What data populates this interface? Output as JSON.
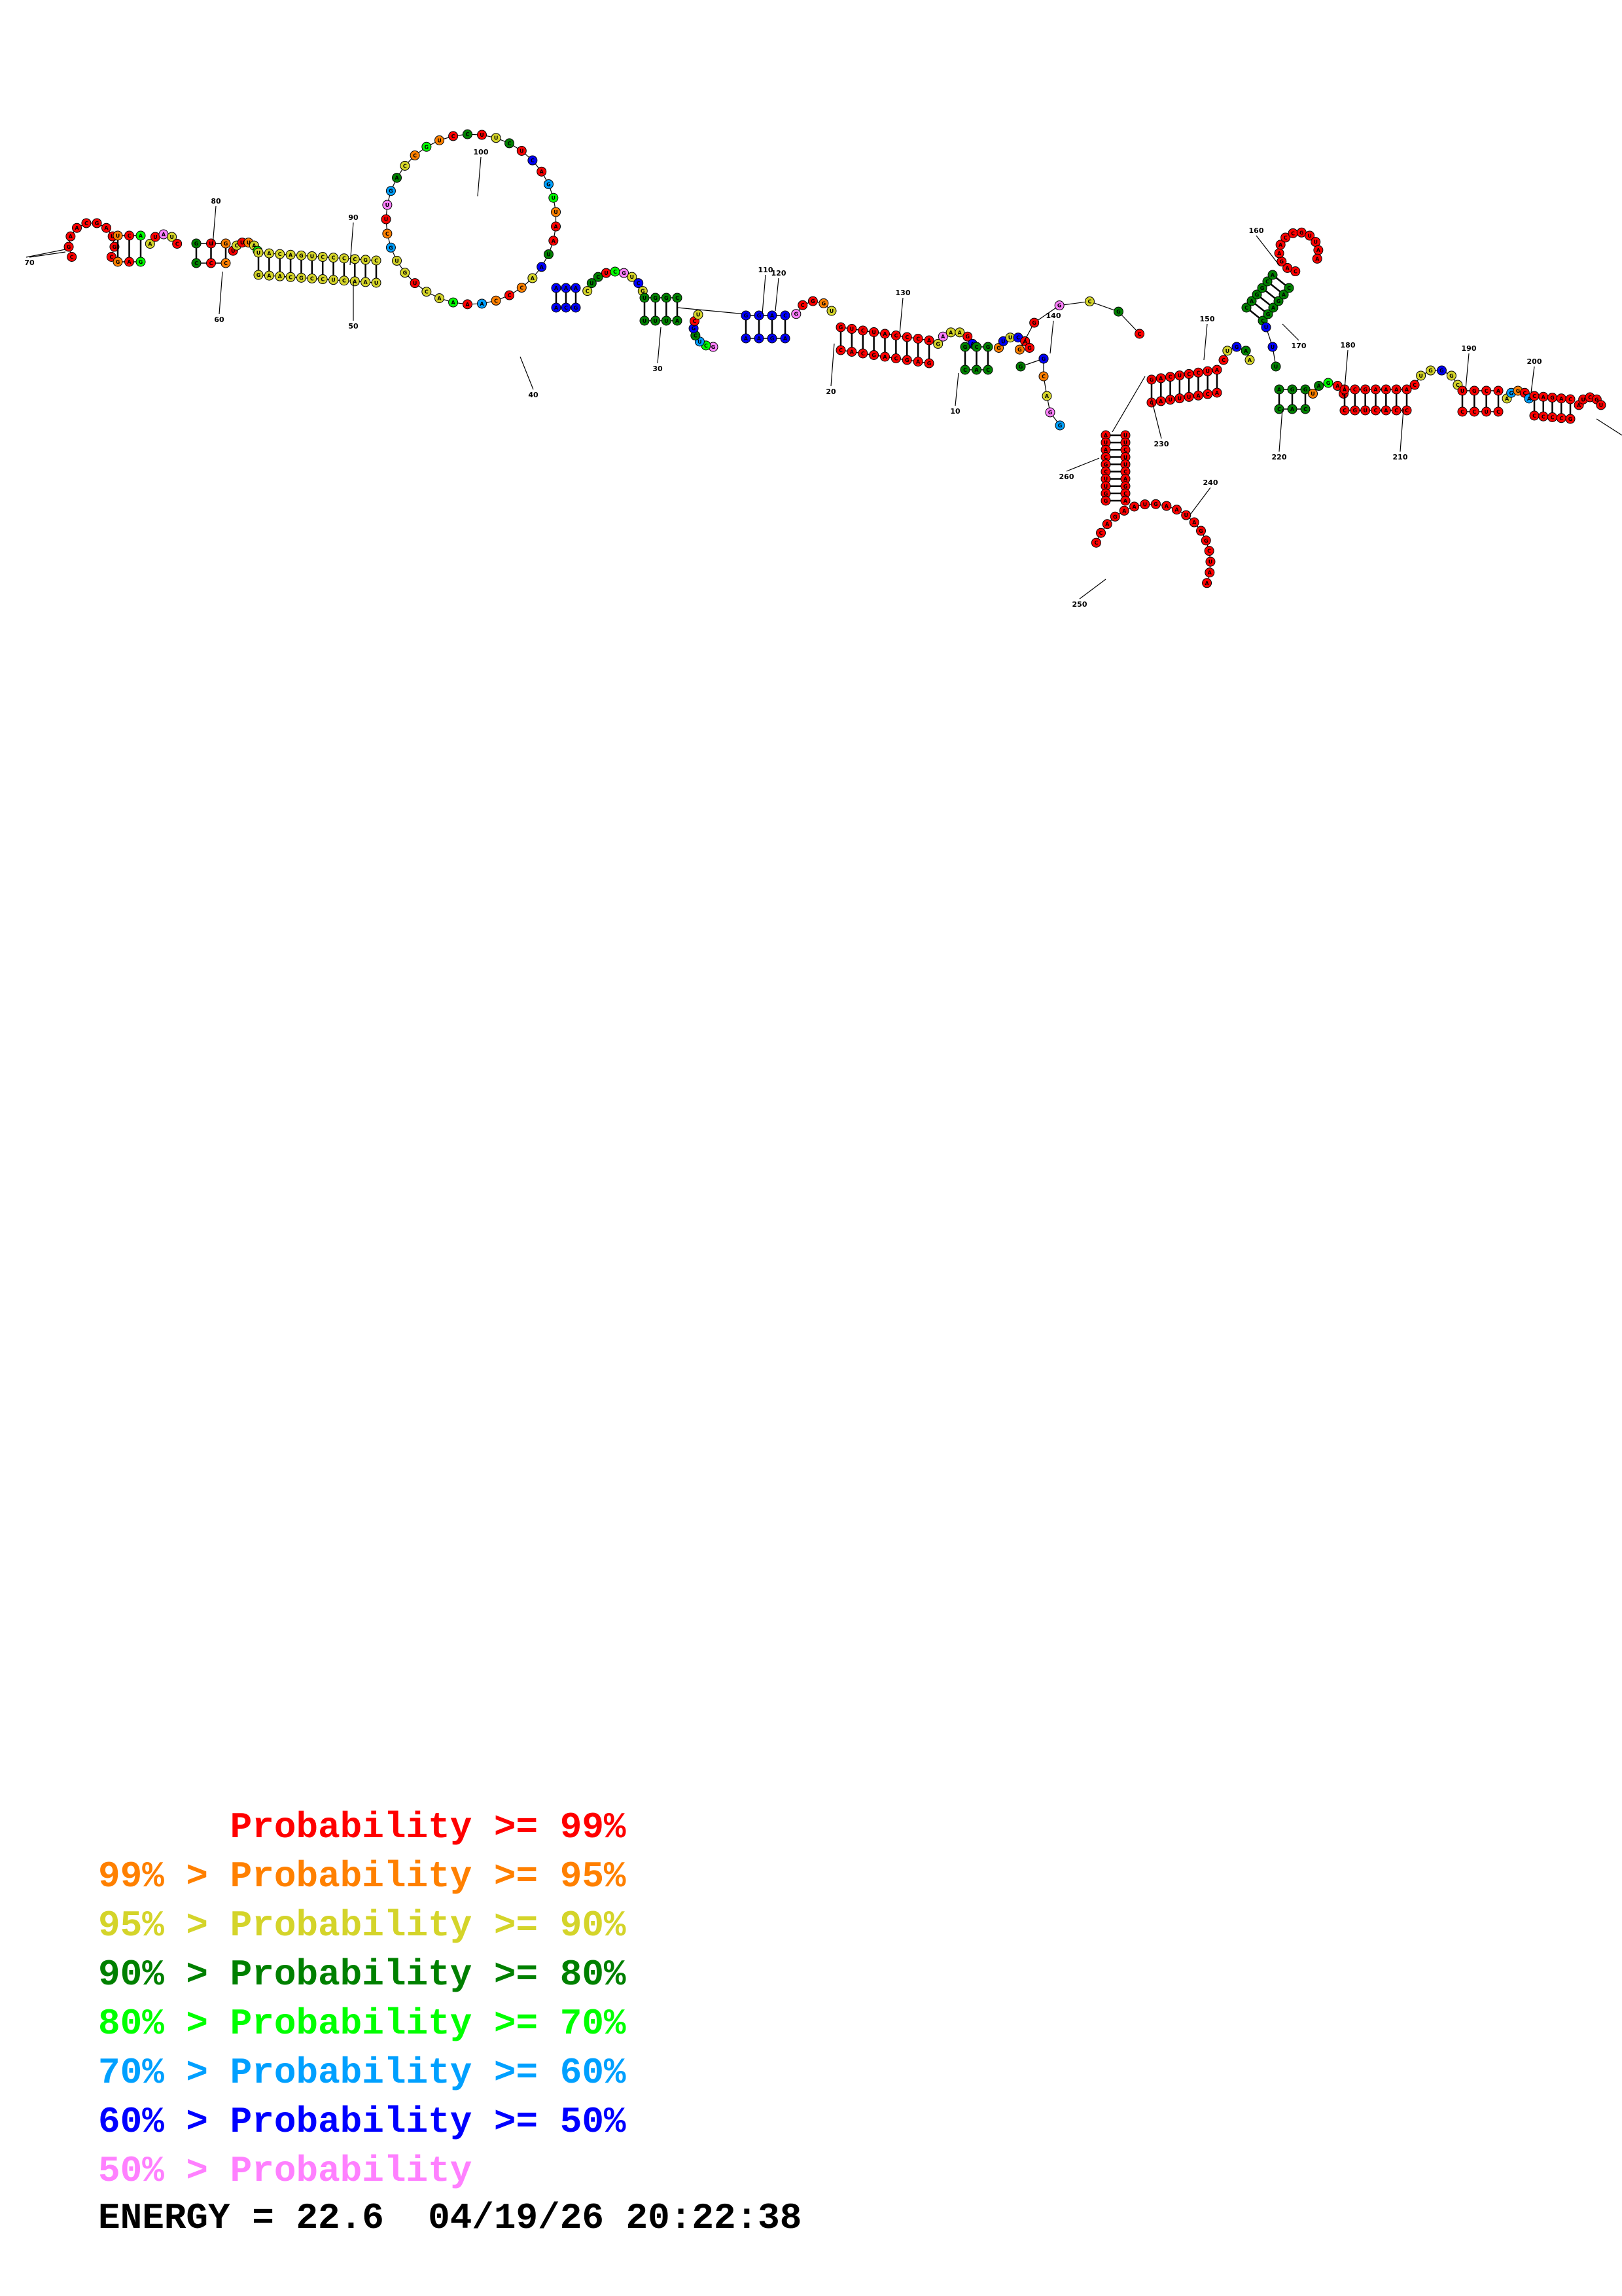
{
  "diagram": {
    "type": "rna-secondary-structure",
    "nucleotide_letters": [
      "A",
      "C",
      "G",
      "U"
    ],
    "index_labels": [
      "10",
      "20",
      "30",
      "40",
      "50",
      "60",
      "70",
      "80",
      "90",
      "100",
      "110",
      "120",
      "130",
      "140",
      "150",
      "160",
      "170",
      "180",
      "190",
      "200",
      "210",
      "220",
      "230",
      "240",
      "250",
      "260"
    ],
    "colors": {
      "p99": "#ff0000",
      "p95": "#ff8000",
      "p90": "#d4d42a",
      "p80": "#008000",
      "p70": "#00ff00",
      "p60": "#00a0ff",
      "p50": "#0000ff",
      "below50": "#ff80ff"
    }
  },
  "legend": [
    {
      "prefix": "      ",
      "main": "Probability >= 99%",
      "color": "#ff0000"
    },
    {
      "prefix": "99% > ",
      "main": "Probability >= 95%",
      "color": "#ff8000"
    },
    {
      "prefix": "95% > ",
      "main": "Probability >= 90%",
      "color": "#d4d42a"
    },
    {
      "prefix": "90% > ",
      "main": "Probability >= 80%",
      "color": "#008000"
    },
    {
      "prefix": "80% > ",
      "main": "Probability >= 70%",
      "color": "#00ff00"
    },
    {
      "prefix": "70% > ",
      "main": "Probability >= 60%",
      "color": "#00a0ff"
    },
    {
      "prefix": "60% > ",
      "main": "Probability >= 50%",
      "color": "#0000ff"
    },
    {
      "prefix": "50% > ",
      "main": "Probability",
      "color": "#ff80ff"
    }
  ],
  "footer": {
    "energy_text": "ENERGY = 22.6  04/19/26 20:22:38"
  }
}
